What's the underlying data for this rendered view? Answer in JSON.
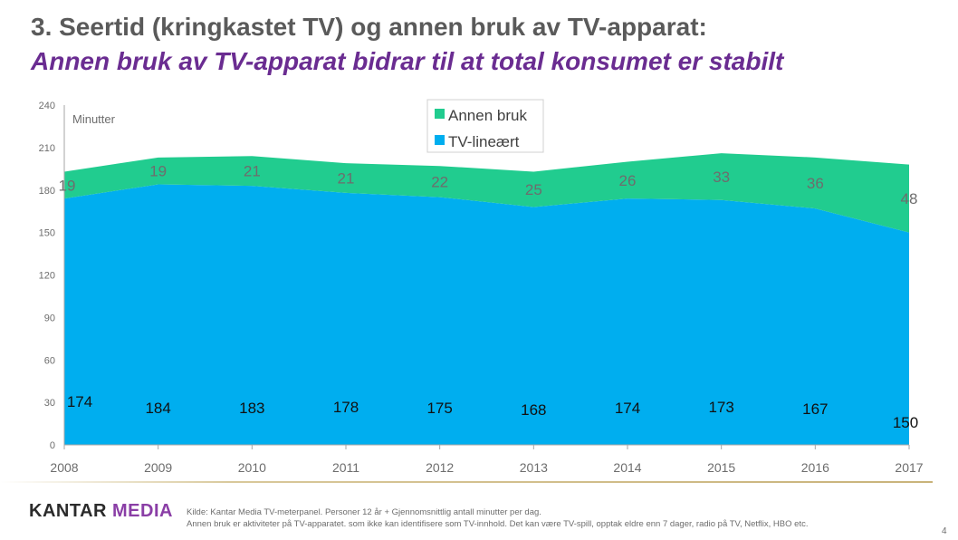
{
  "slide": {
    "title": "3. Seertid (kringkastet TV) og annen bruk av TV-apparat:",
    "subtitle": "Annen bruk av TV-apparat bidrar til at total konsumet er stabilt",
    "footnote_line1": "Kilde: Kantar Media TV-meterpanel. Personer 12 år + Gjennomsnittlig antall minutter per dag.",
    "footnote_line2": "Annen bruk er aktiviteter på TV-apparatet. som ikke kan identifisere som TV-innhold. Det kan være TV-spill, opptak eldre enn 7 dager, radio på TV, Netflix, HBO etc.",
    "page_number": "4",
    "logo": {
      "part1": "KANTAR",
      "part2": " MEDIA"
    }
  },
  "chart_data": {
    "type": "area",
    "stacked": true,
    "categories": [
      "2008",
      "2009",
      "2010",
      "2011",
      "2012",
      "2013",
      "2014",
      "2015",
      "2016",
      "2017"
    ],
    "ylabel": "Minutter",
    "ylim": [
      0,
      240
    ],
    "yticks": [
      0,
      30,
      60,
      90,
      120,
      150,
      180,
      210,
      240
    ],
    "grid": false,
    "legend_position": "top-center",
    "series": [
      {
        "name": "TV-lineært",
        "color": "#00aeef",
        "values": [
          174,
          184,
          183,
          178,
          175,
          168,
          174,
          173,
          167,
          150
        ]
      },
      {
        "name": "Annen bruk",
        "color": "#21cc8f",
        "values": [
          19,
          19,
          21,
          21,
          22,
          25,
          26,
          33,
          36,
          48
        ]
      }
    ],
    "colors": {
      "axis": "#a6a6a6",
      "tick_text": "#6d6d6d",
      "tv_label": "#111111",
      "annen_label": "#6d6d6d"
    }
  }
}
